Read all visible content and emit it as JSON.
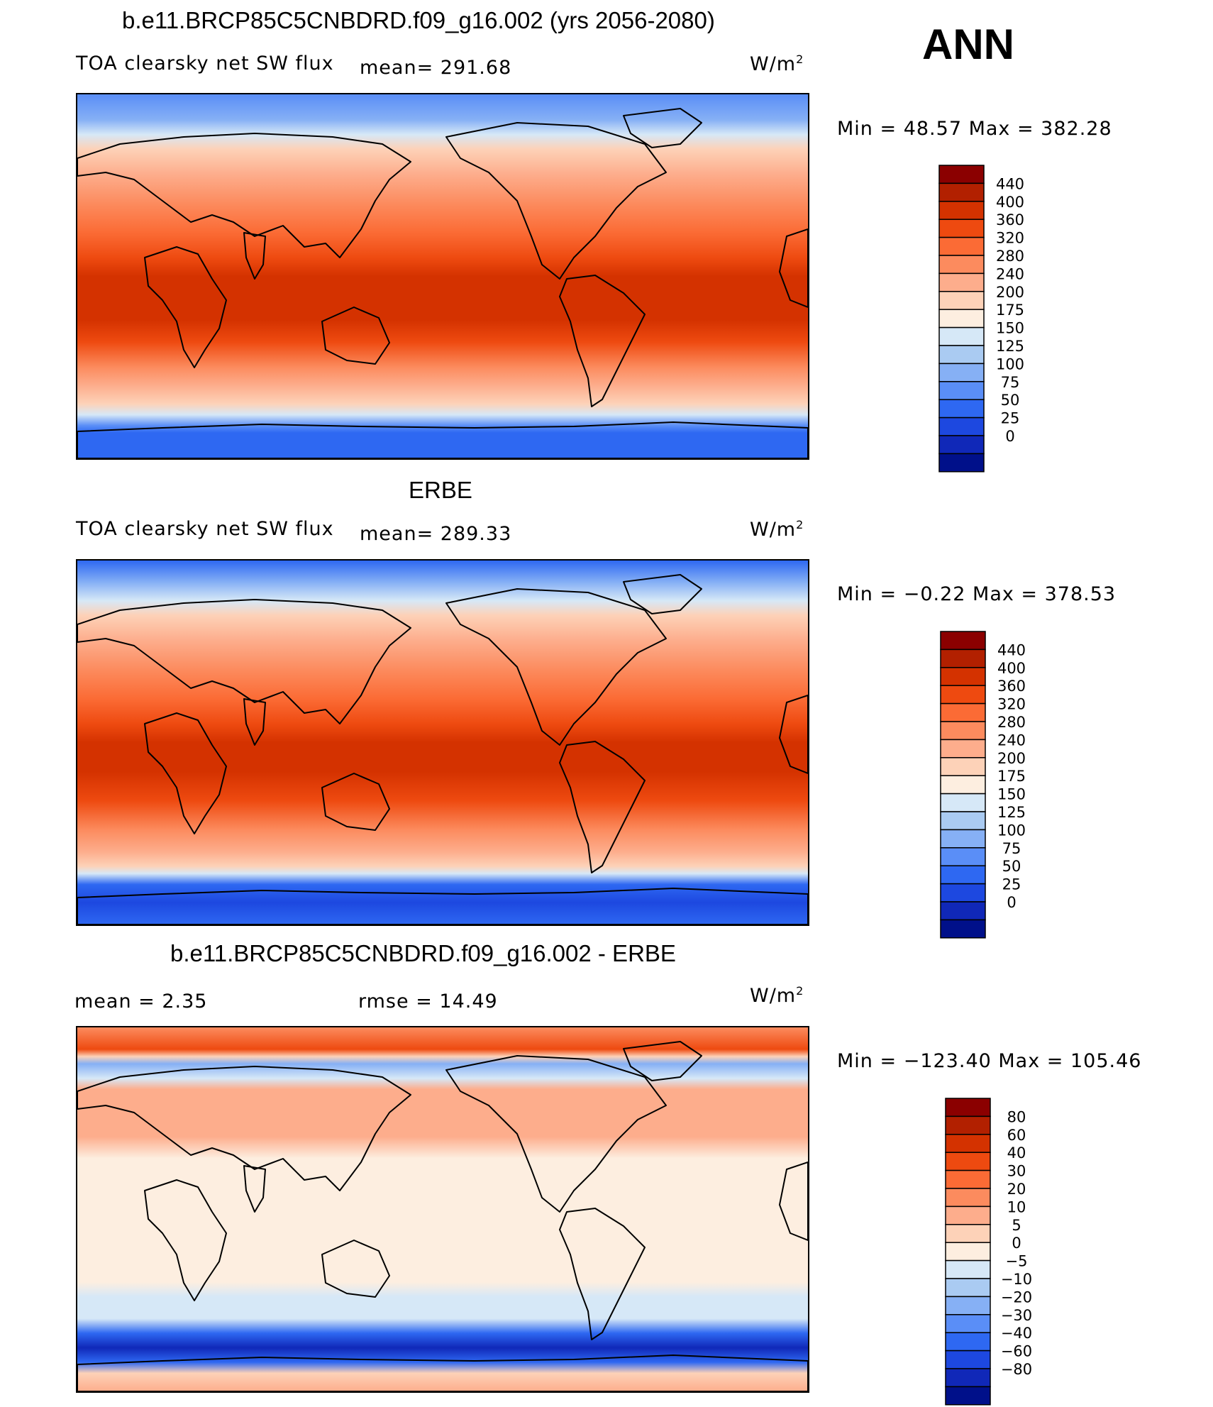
{
  "season": "ANN",
  "panels": [
    {
      "id": "model",
      "title": "b.e11.BRCP85C5CNBDRD.f09_g16.002 (yrs 2056-2080)",
      "variable": "TOA clearsky net SW flux",
      "stat1": "mean=  291.68",
      "stat2": "",
      "units": "W/m",
      "units_sup": "2",
      "minmax": "Min =   48.57 Max = 382.28"
    },
    {
      "id": "obs",
      "title": "ERBE",
      "variable": "TOA clearsky net SW flux",
      "stat1": "mean=  289.33",
      "stat2": "",
      "units": "W/m",
      "units_sup": "2",
      "minmax": "Min =  −0.22 Max = 378.53"
    },
    {
      "id": "diff",
      "title": "b.e11.BRCP85C5CNBDRD.f09_g16.002 - ERBE",
      "variable": "",
      "stat1": "mean =    2.35",
      "stat2": "rmse =   14.49",
      "units": "W/m",
      "units_sup": "2",
      "minmax": "Min = −123.40 Max = 105.46"
    }
  ],
  "colorbars": {
    "abs": {
      "labels": [
        "440",
        "400",
        "360",
        "320",
        "280",
        "240",
        "200",
        "175",
        "150",
        "125",
        "100",
        "75",
        "50",
        "25",
        "0"
      ],
      "colors": [
        "#8b0000",
        "#b22000",
        "#d43200",
        "#ee4a10",
        "#fb6b35",
        "#fc8b5e",
        "#fdad8c",
        "#fdd2b8",
        "#fdeee0",
        "#d6e8f7",
        "#aacbf2",
        "#86b0f5",
        "#5a8ef7",
        "#2e68f2",
        "#1d48e0",
        "#1028b8",
        "#00108a"
      ]
    },
    "diff": {
      "labels": [
        "80",
        "60",
        "40",
        "30",
        "20",
        "10",
        "5",
        "0",
        "−5",
        "−10",
        "−20",
        "−30",
        "−40",
        "−60",
        "−80"
      ],
      "colors": [
        "#8b0000",
        "#b22000",
        "#d43200",
        "#ee4a10",
        "#fb6b35",
        "#fc8b5e",
        "#fdad8c",
        "#fdd2b8",
        "#fdeee0",
        "#d6e8f7",
        "#aacbf2",
        "#86b0f5",
        "#5a8ef7",
        "#2e68f2",
        "#1d48e0",
        "#1028b8",
        "#00108a"
      ]
    }
  }
}
